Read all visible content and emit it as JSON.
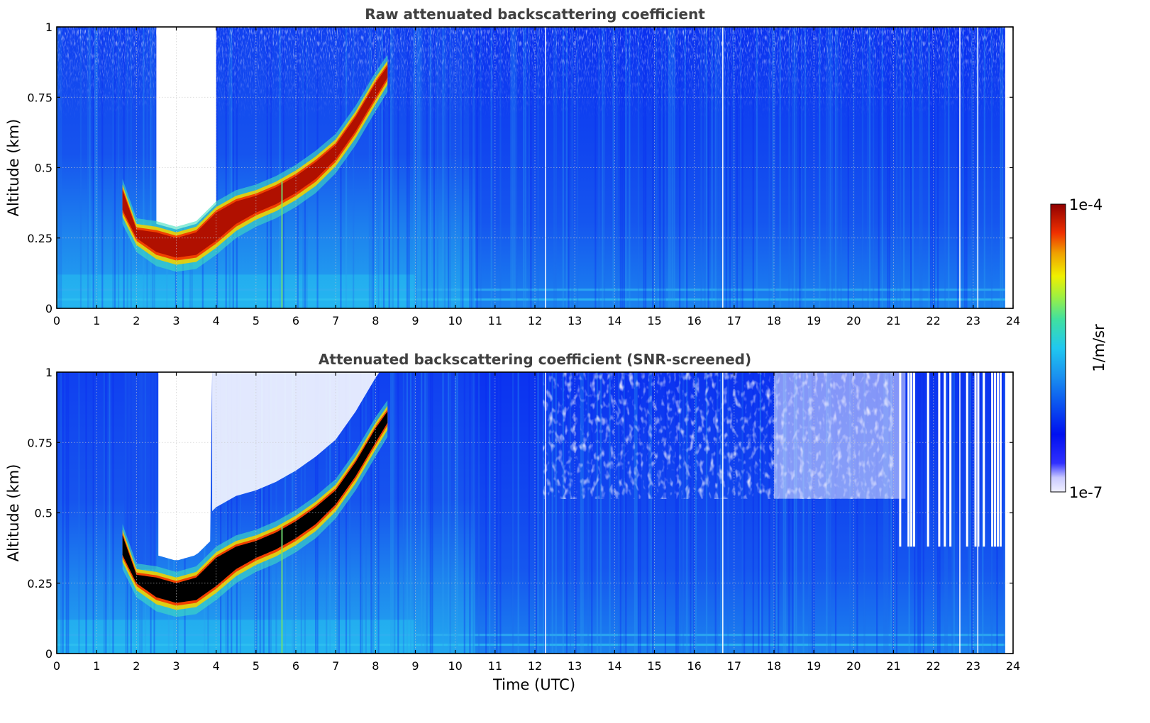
{
  "chart_data": [
    {
      "type": "heatmap",
      "title": "Raw attenuated backscattering coefficient",
      "xlabel": "",
      "ylabel": "Altitude (km)",
      "xlim": [
        0,
        24
      ],
      "ylim": [
        0,
        1
      ],
      "xticks": [
        "0",
        "1",
        "2",
        "3",
        "4",
        "5",
        "6",
        "7",
        "8",
        "9",
        "10",
        "11",
        "12",
        "13",
        "14",
        "15",
        "16",
        "17",
        "18",
        "19",
        "20",
        "21",
        "22",
        "23",
        "24"
      ],
      "yticks": [
        "0",
        "0.25",
        "0.5",
        "0.75",
        "1"
      ],
      "grid": true,
      "layer_top_km": [
        [
          1.65,
          0.42
        ],
        [
          2.0,
          0.28
        ],
        [
          2.5,
          0.27
        ],
        [
          3.0,
          0.25
        ],
        [
          3.5,
          0.27
        ],
        [
          4.0,
          0.34
        ],
        [
          4.5,
          0.38
        ],
        [
          5.0,
          0.4
        ],
        [
          5.5,
          0.43
        ],
        [
          6.0,
          0.47
        ],
        [
          6.5,
          0.52
        ],
        [
          7.0,
          0.58
        ],
        [
          7.5,
          0.68
        ],
        [
          8.0,
          0.8
        ],
        [
          8.3,
          0.86
        ]
      ],
      "layer_bottom_km": [
        [
          1.65,
          0.35
        ],
        [
          2.0,
          0.25
        ],
        [
          2.5,
          0.2
        ],
        [
          3.0,
          0.18
        ],
        [
          3.5,
          0.19
        ],
        [
          4.0,
          0.24
        ],
        [
          4.5,
          0.3
        ],
        [
          5.0,
          0.34
        ],
        [
          5.5,
          0.37
        ],
        [
          6.0,
          0.41
        ],
        [
          6.5,
          0.46
        ],
        [
          7.0,
          0.53
        ],
        [
          7.5,
          0.63
        ],
        [
          8.0,
          0.75
        ],
        [
          8.3,
          0.82
        ]
      ],
      "clear_region_hours": [
        2.5,
        4.0
      ],
      "data_end_hour": 23.8
    },
    {
      "type": "heatmap",
      "title": "Attenuated backscattering coefficient (SNR-screened)",
      "xlabel": "Time (UTC)",
      "ylabel": "Altitude (km)",
      "xlim": [
        0,
        24
      ],
      "ylim": [
        0,
        1
      ],
      "xticks": [
        "0",
        "1",
        "2",
        "3",
        "4",
        "5",
        "6",
        "7",
        "8",
        "9",
        "10",
        "11",
        "12",
        "13",
        "14",
        "15",
        "16",
        "17",
        "18",
        "19",
        "20",
        "21",
        "22",
        "23",
        "24"
      ],
      "yticks": [
        "0",
        "0.25",
        "0.5",
        "0.75",
        "1"
      ],
      "grid": true,
      "layer_top_km": [
        [
          1.65,
          0.42
        ],
        [
          2.0,
          0.28
        ],
        [
          2.5,
          0.27
        ],
        [
          3.0,
          0.25
        ],
        [
          3.5,
          0.27
        ],
        [
          4.0,
          0.34
        ],
        [
          4.5,
          0.38
        ],
        [
          5.0,
          0.4
        ],
        [
          5.5,
          0.43
        ],
        [
          6.0,
          0.47
        ],
        [
          6.5,
          0.52
        ],
        [
          7.0,
          0.58
        ],
        [
          7.5,
          0.68
        ],
        [
          8.0,
          0.8
        ],
        [
          8.3,
          0.86
        ]
      ],
      "layer_bottom_km": [
        [
          1.65,
          0.35
        ],
        [
          2.0,
          0.25
        ],
        [
          2.5,
          0.2
        ],
        [
          3.0,
          0.18
        ],
        [
          3.5,
          0.19
        ],
        [
          4.0,
          0.24
        ],
        [
          4.5,
          0.3
        ],
        [
          5.0,
          0.34
        ],
        [
          5.5,
          0.37
        ],
        [
          6.0,
          0.41
        ],
        [
          6.5,
          0.46
        ],
        [
          7.0,
          0.53
        ],
        [
          7.5,
          0.63
        ],
        [
          8.0,
          0.75
        ],
        [
          8.3,
          0.82
        ]
      ],
      "screened_top_km_after_21h": 0.38,
      "data_end_hour": 23.8
    }
  ],
  "colorbar": {
    "label": "1/m/sr",
    "max_label": "1e-4",
    "min_label": "1e-7",
    "scale": "log",
    "range": [
      1e-07,
      0.0001
    ]
  },
  "colors": {
    "background_low": "#1f8fef",
    "deep_blue": "#0a28f0",
    "mid_blue": "#1e64ee",
    "cyan": "#28c8f0",
    "layer_red": "#b01000",
    "layer_black": "#000000",
    "clear": "#ffffff",
    "axis": "#000000",
    "grid": "#c8c8c8"
  }
}
